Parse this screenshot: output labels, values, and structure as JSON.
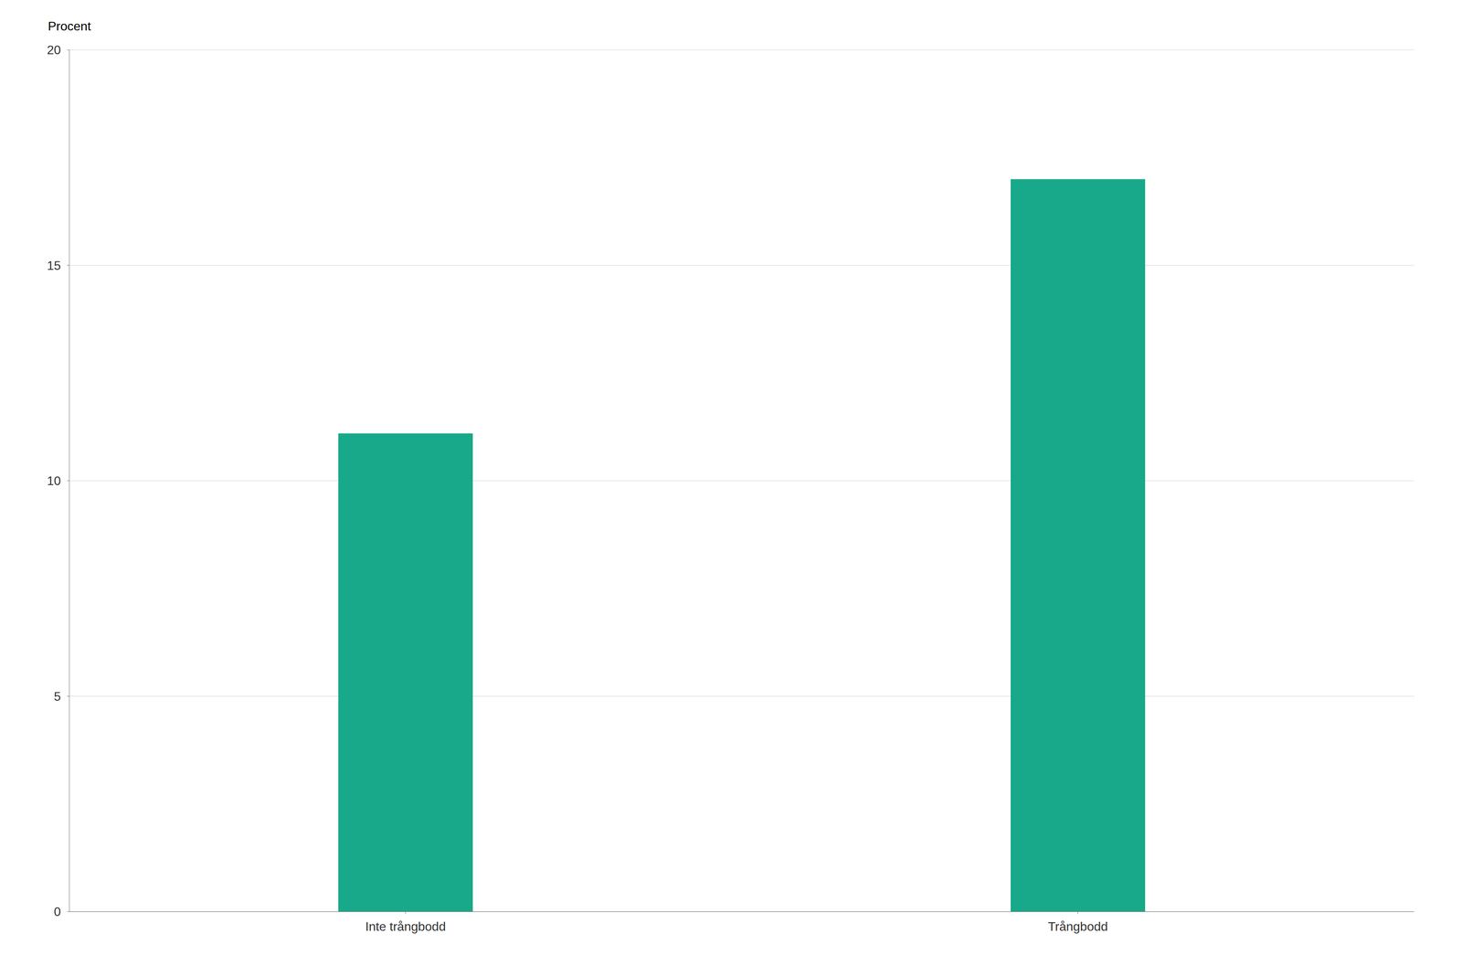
{
  "chart_data": {
    "type": "bar",
    "ylabel": "Procent",
    "categories": [
      "Inte trångbodd",
      "Trångbodd"
    ],
    "values": [
      11.1,
      17.0
    ],
    "color": "#17A98A",
    "ylim": [
      0,
      20
    ],
    "yticks": [
      0,
      5,
      10,
      15,
      20
    ],
    "grid": true
  }
}
